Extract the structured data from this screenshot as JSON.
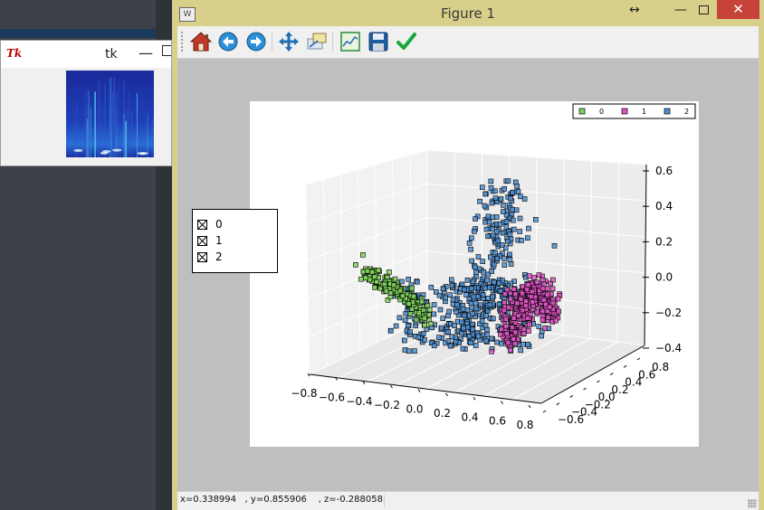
{
  "tk_window": {
    "title": "tk",
    "logo": "Tk",
    "minimize": "—"
  },
  "figure_window": {
    "title": "Figure 1",
    "icon": "matplotlib-icon",
    "caption_buttons": {
      "resize": "↔",
      "minimize": "—",
      "close": "✕"
    }
  },
  "toolbar": {
    "tools": [
      {
        "name": "home",
        "icon": "home-icon"
      },
      {
        "name": "back",
        "icon": "back-arrow-icon"
      },
      {
        "name": "forward",
        "icon": "forward-arrow-icon"
      },
      {
        "name": "pan",
        "icon": "pan-icon"
      },
      {
        "name": "zoom",
        "icon": "zoom-rect-icon"
      },
      {
        "name": "configure-subplots",
        "icon": "subplots-icon"
      },
      {
        "name": "save",
        "icon": "save-icon"
      },
      {
        "name": "edit",
        "icon": "checkmark-icon"
      }
    ]
  },
  "status": {
    "coords": "x=0.338994   , y=0.855906    , z=-0.288058"
  },
  "side_legend": {
    "entries": [
      {
        "label": "0"
      },
      {
        "label": "1"
      },
      {
        "label": "2"
      }
    ]
  },
  "chart_data": {
    "type": "scatter",
    "projection": "3d",
    "title": "",
    "series": [
      {
        "name": "0",
        "color": "#7fd35c",
        "marker": "square",
        "cluster_center": [
          -0.7,
          0.4,
          -0.05
        ],
        "approx_points": 350
      },
      {
        "name": "1",
        "color": "#e055c6",
        "marker": "square",
        "cluster_center": [
          0.45,
          -0.45,
          -0.1
        ],
        "approx_points": 900
      },
      {
        "name": "2",
        "color": "#4f8fd0",
        "marker": "square",
        "cluster_center": [
          0.05,
          0.1,
          0.15
        ],
        "approx_points": 1800
      }
    ],
    "x_ticks": [
      "−0.8",
      "−0.6",
      "−0.4",
      "−0.2",
      "0.0",
      "0.2",
      "0.4",
      "0.6",
      "0.8"
    ],
    "y_ticks": [
      "−0.6",
      "−0.4",
      "−0.2",
      "0.0",
      "0.2",
      "0.4",
      "0.6",
      "0.8"
    ],
    "z_ticks": [
      "0.6",
      "0.4",
      "0.2",
      "0.0",
      "−0.2",
      "−0.4"
    ],
    "xlim": [
      -0.8,
      0.8
    ],
    "ylim": [
      -0.6,
      0.8
    ],
    "zlim": [
      -0.4,
      0.6
    ],
    "legend_placement": "top-right",
    "grid": true
  }
}
